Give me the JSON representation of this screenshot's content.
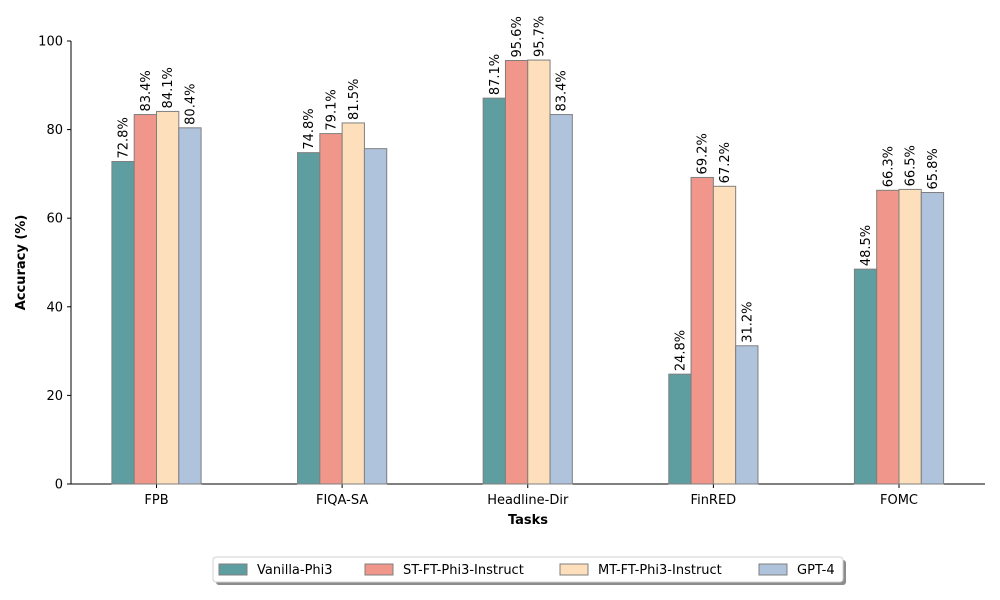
{
  "chart_data": {
    "type": "bar",
    "title": "",
    "xlabel": "Tasks",
    "ylabel": "Accuracy (%)",
    "ylim": [
      0,
      100
    ],
    "yticks": [
      0,
      20,
      40,
      60,
      80,
      100
    ],
    "grid": false,
    "legend_position": "bottom-center",
    "categories": [
      "FPB",
      "FIQA-SA",
      "Headline-Dir",
      "FinRED",
      "FOMC"
    ],
    "series": [
      {
        "name": "Vanilla-Phi3",
        "color": "#5f9ea0",
        "values": [
          72.8,
          74.8,
          87.1,
          24.8,
          48.5
        ],
        "labels": [
          "72.8%",
          "74.8%",
          "87.1%",
          "24.8%",
          "48.5%"
        ]
      },
      {
        "name": "ST-FT-Phi3-Instruct",
        "color": "#f1968a",
        "values": [
          83.4,
          79.1,
          95.6,
          69.2,
          66.3
        ],
        "labels": [
          "83.4%",
          "79.1%",
          "95.6%",
          "69.2%",
          "66.3%"
        ]
      },
      {
        "name": "MT-FT-Phi3-Instruct",
        "color": "#fde0bb",
        "values": [
          84.1,
          81.5,
          95.7,
          67.2,
          66.5
        ],
        "labels": [
          "84.1%",
          "81.5%",
          "95.7%",
          "67.2%",
          "66.5%"
        ]
      },
      {
        "name": "GPT-4",
        "color": "#afc3dd",
        "values": [
          80.4,
          75.7,
          83.4,
          31.2,
          65.8
        ],
        "labels": [
          "80.4%",
          "",
          "83.4%",
          "31.2%",
          "65.8%"
        ]
      }
    ]
  }
}
